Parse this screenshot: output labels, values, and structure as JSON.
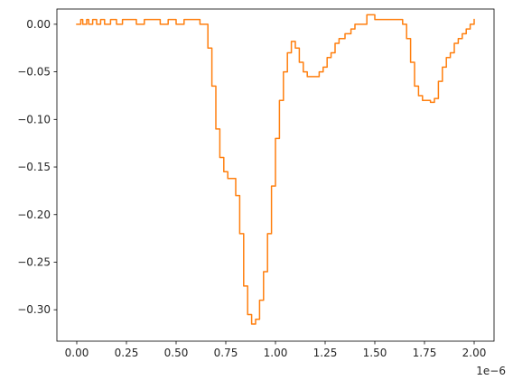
{
  "chart_data": {
    "type": "line",
    "title": "",
    "xlabel": "",
    "ylabel": "",
    "x_unit_scale": 1e-06,
    "x_offset_label": "1e−6",
    "xlim": [
      -0.1,
      2.1
    ],
    "ylim": [
      -0.333,
      0.016
    ],
    "x_ticks": [
      0.0,
      0.25,
      0.5,
      0.75,
      1.0,
      1.25,
      1.5,
      1.75,
      2.0
    ],
    "x_tick_labels": [
      "0.00",
      "0.25",
      "0.50",
      "0.75",
      "1.00",
      "1.25",
      "1.50",
      "1.75",
      "2.00"
    ],
    "y_ticks": [
      0.0,
      -0.05,
      -0.1,
      -0.15,
      -0.2,
      -0.25,
      -0.3
    ],
    "y_tick_labels": [
      "0.00",
      "−0.05",
      "−0.10",
      "−0.15",
      "−0.20",
      "−0.25",
      "−0.30"
    ],
    "grid": false,
    "legend": false,
    "series": [
      {
        "color": "#ff7f0e",
        "x": [
          0.0,
          0.02,
          0.03,
          0.05,
          0.06,
          0.08,
          0.1,
          0.12,
          0.14,
          0.17,
          0.2,
          0.23,
          0.26,
          0.3,
          0.34,
          0.38,
          0.42,
          0.46,
          0.5,
          0.54,
          0.58,
          0.62,
          0.64,
          0.66,
          0.68,
          0.7,
          0.72,
          0.74,
          0.76,
          0.78,
          0.8,
          0.82,
          0.84,
          0.86,
          0.88,
          0.9,
          0.92,
          0.94,
          0.96,
          0.98,
          1.0,
          1.02,
          1.04,
          1.06,
          1.08,
          1.1,
          1.12,
          1.14,
          1.16,
          1.18,
          1.2,
          1.22,
          1.24,
          1.26,
          1.28,
          1.3,
          1.32,
          1.35,
          1.38,
          1.4,
          1.42,
          1.44,
          1.46,
          1.5,
          1.55,
          1.6,
          1.64,
          1.66,
          1.68,
          1.7,
          1.72,
          1.74,
          1.76,
          1.78,
          1.8,
          1.82,
          1.84,
          1.86,
          1.88,
          1.9,
          1.92,
          1.94,
          1.96,
          1.98,
          2.0
        ],
        "y": [
          0.0,
          0.005,
          0.0,
          0.005,
          0.0,
          0.005,
          0.0,
          0.005,
          0.0,
          0.005,
          0.0,
          0.005,
          0.005,
          0.0,
          0.005,
          0.005,
          0.0,
          0.005,
          0.0,
          0.005,
          0.005,
          0.0,
          0.0,
          -0.025,
          -0.065,
          -0.11,
          -0.14,
          -0.155,
          -0.162,
          -0.162,
          -0.18,
          -0.22,
          -0.275,
          -0.305,
          -0.315,
          -0.31,
          -0.29,
          -0.26,
          -0.22,
          -0.17,
          -0.12,
          -0.08,
          -0.05,
          -0.03,
          -0.018,
          -0.025,
          -0.04,
          -0.05,
          -0.055,
          -0.055,
          -0.055,
          -0.05,
          -0.045,
          -0.035,
          -0.03,
          -0.02,
          -0.015,
          -0.01,
          -0.005,
          0.0,
          0.0,
          0.0,
          0.01,
          0.005,
          0.005,
          0.005,
          0.0,
          -0.015,
          -0.04,
          -0.065,
          -0.075,
          -0.08,
          -0.08,
          -0.082,
          -0.078,
          -0.06,
          -0.045,
          -0.035,
          -0.03,
          -0.02,
          -0.015,
          -0.01,
          -0.005,
          0.0,
          0.005
        ]
      }
    ]
  }
}
